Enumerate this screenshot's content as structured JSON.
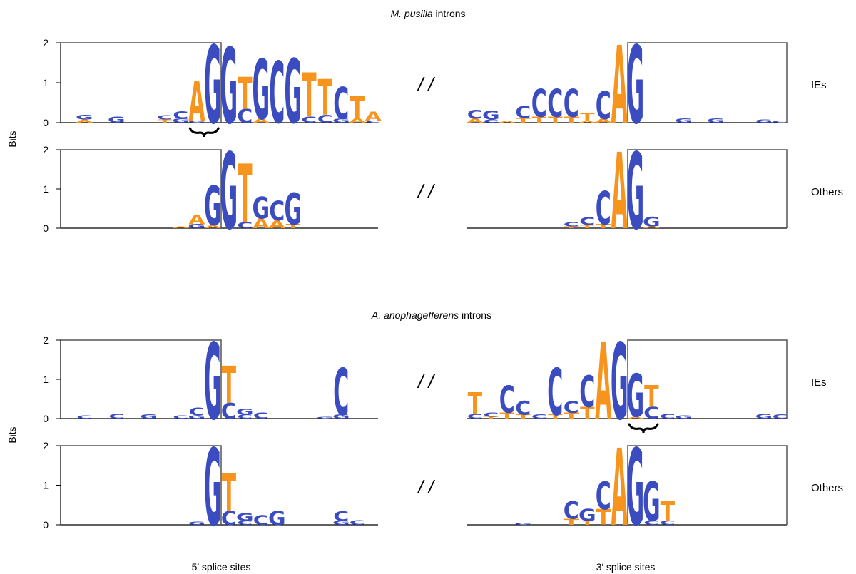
{
  "figure": {
    "colors": {
      "purine_blue": "#3b4cc0",
      "orange": "#f7941d",
      "axis": "#000000",
      "frame": "#555555"
    },
    "bottom_labels": {
      "left": "5′ splice sites",
      "right": "3′ splice sites"
    },
    "break_mark": "/ /"
  },
  "chart_data": [
    {
      "type": "sequence_logo",
      "title": "M. pusilla introns",
      "title_italic": "M. pusilla",
      "title_rest": " introns",
      "ylabel": "Bits",
      "ylim": [
        0,
        2
      ],
      "yticks": [
        "0",
        "1",
        "2"
      ],
      "rows": [
        {
          "label": "IEs",
          "left": {
            "boxed_positions": 10,
            "positions": [
              [],
              [
                {
                  "l": "G",
                  "h": 0.12
                },
                {
                  "l": "A",
                  "h": 0.08
                }
              ],
              [],
              [
                {
                  "l": "G",
                  "h": 0.15
                }
              ],
              [],
              [],
              [
                {
                  "l": "C",
                  "h": 0.1
                },
                {
                  "l": "T",
                  "h": 0.08
                }
              ],
              [
                {
                  "l": "C",
                  "h": 0.18
                },
                {
                  "l": "G",
                  "h": 0.1
                }
              ],
              [
                {
                  "l": "A",
                  "h": 1.0
                },
                {
                  "l": "G",
                  "h": 0.05
                }
              ],
              [
                {
                  "l": "G",
                  "h": 1.95
                }
              ],
              [
                {
                  "l": "G",
                  "h": 1.9
                }
              ],
              [
                {
                  "l": "T",
                  "h": 0.8
                },
                {
                  "l": "C",
                  "h": 0.35
                }
              ],
              [
                {
                  "l": "G",
                  "h": 1.5
                },
                {
                  "l": "A",
                  "h": 0.1
                }
              ],
              [
                {
                  "l": "C",
                  "h": 1.55
                }
              ],
              [
                {
                  "l": "G",
                  "h": 1.6
                }
              ],
              [
                {
                  "l": "T",
                  "h": 1.1
                },
                {
                  "l": "C",
                  "h": 0.15
                }
              ],
              [
                {
                  "l": "T",
                  "h": 0.9
                },
                {
                  "l": "C",
                  "h": 0.2
                }
              ],
              [
                {
                  "l": "C",
                  "h": 0.8
                },
                {
                  "l": "G",
                  "h": 0.1
                }
              ],
              [
                {
                  "l": "T",
                  "h": 0.55
                },
                {
                  "l": "A",
                  "h": 0.12
                }
              ],
              [
                {
                  "l": "A",
                  "h": 0.22
                },
                {
                  "l": "C",
                  "h": 0.05
                }
              ]
            ]
          },
          "right": {
            "boxed_start": 10,
            "positions": [
              [
                {
                  "l": "C",
                  "h": 0.22
                },
                {
                  "l": "A",
                  "h": 0.1
                }
              ],
              [
                {
                  "l": "G",
                  "h": 0.22
                },
                {
                  "l": "C",
                  "h": 0.08
                }
              ],
              [
                {
                  "l": "A",
                  "h": 0.05
                }
              ],
              [
                {
                  "l": "C",
                  "h": 0.3
                },
                {
                  "l": "T",
                  "h": 0.12
                }
              ],
              [
                {
                  "l": "C",
                  "h": 0.7
                },
                {
                  "l": "T",
                  "h": 0.15
                }
              ],
              [
                {
                  "l": "C",
                  "h": 0.7
                },
                {
                  "l": "T",
                  "h": 0.15
                }
              ],
              [
                {
                  "l": "C",
                  "h": 0.7
                },
                {
                  "l": "T",
                  "h": 0.15
                }
              ],
              [
                {
                  "l": "T",
                  "h": 0.2
                },
                {
                  "l": "A",
                  "h": 0.05
                }
              ],
              [
                {
                  "l": "C",
                  "h": 0.7
                },
                {
                  "l": "A",
                  "h": 0.1
                }
              ],
              [
                {
                  "l": "A",
                  "h": 1.95
                }
              ],
              [
                {
                  "l": "G",
                  "h": 1.95
                }
              ],
              [],
              [],
              [
                {
                  "l": "G",
                  "h": 0.1
                }
              ],
              [],
              [
                {
                  "l": "G",
                  "h": 0.1
                }
              ],
              [],
              [],
              [
                {
                  "l": "G",
                  "h": 0.08
                }
              ],
              [
                {
                  "l": "C",
                  "h": 0.05
                }
              ]
            ]
          },
          "brace": "left"
        },
        {
          "label": "Others",
          "left": {
            "boxed_positions": 10,
            "positions": [
              [],
              [],
              [],
              [],
              [],
              [],
              [],
              [
                {
                  "l": "A",
                  "h": 0.05
                }
              ],
              [
                {
                  "l": "A",
                  "h": 0.25
                },
                {
                  "l": "G",
                  "h": 0.1
                }
              ],
              [
                {
                  "l": "G",
                  "h": 1.0
                },
                {
                  "l": "A",
                  "h": 0.08
                }
              ],
              [
                {
                  "l": "G",
                  "h": 1.95
                }
              ],
              [
                {
                  "l": "T",
                  "h": 1.5
                },
                {
                  "l": "C",
                  "h": 0.15
                }
              ],
              [
                {
                  "l": "G",
                  "h": 0.55
                },
                {
                  "l": "A",
                  "h": 0.25
                }
              ],
              [
                {
                  "l": "C",
                  "h": 0.5
                },
                {
                  "l": "A",
                  "h": 0.2
                }
              ],
              [
                {
                  "l": "G",
                  "h": 0.8
                },
                {
                  "l": "T",
                  "h": 0.1
                }
              ]
            ]
          },
          "right": {
            "boxed_start": 10,
            "positions": [
              [],
              [],
              [],
              [],
              [],
              [],
              [
                {
                  "l": "C",
                  "h": 0.1
                },
                {
                  "l": "T",
                  "h": 0.05
                }
              ],
              [
                {
                  "l": "C",
                  "h": 0.2
                },
                {
                  "l": "T",
                  "h": 0.08
                }
              ],
              [
                {
                  "l": "C",
                  "h": 0.85
                },
                {
                  "l": "T",
                  "h": 0.1
                }
              ],
              [
                {
                  "l": "A",
                  "h": 1.95
                }
              ],
              [
                {
                  "l": "G",
                  "h": 1.95
                }
              ],
              [
                {
                  "l": "G",
                  "h": 0.25
                },
                {
                  "l": "A",
                  "h": 0.05
                }
              ]
            ]
          },
          "brace": ""
        }
      ]
    },
    {
      "type": "sequence_logo",
      "title": "A. anophagefferens introns",
      "title_italic": "A. anophagefferens",
      "title_rest": " introns",
      "ylabel": "Bits",
      "ylim": [
        0,
        2
      ],
      "yticks": [
        "0",
        "1",
        "2"
      ],
      "rows": [
        {
          "label": "IEs",
          "left": {
            "boxed_positions": 10,
            "positions": [
              [],
              [
                {
                  "l": "C",
                  "h": 0.08
                }
              ],
              [],
              [
                {
                  "l": "C",
                  "h": 0.12
                }
              ],
              [],
              [
                {
                  "l": "G",
                  "h": 0.1
                }
              ],
              [],
              [
                {
                  "l": "C",
                  "h": 0.08
                }
              ],
              [
                {
                  "l": "C",
                  "h": 0.2
                },
                {
                  "l": "G",
                  "h": 0.08
                }
              ],
              [
                {
                  "l": "G",
                  "h": 1.95
                }
              ],
              [
                {
                  "l": "T",
                  "h": 0.95
                },
                {
                  "l": "C",
                  "h": 0.4
                }
              ],
              [
                {
                  "l": "G",
                  "h": 0.15
                },
                {
                  "l": "C",
                  "h": 0.1
                }
              ],
              [
                {
                  "l": "C",
                  "h": 0.15
                }
              ],
              [],
              [],
              [],
              [
                {
                  "l": "G",
                  "h": 0.05
                }
              ],
              [
                {
                  "l": "C",
                  "h": 1.2
                },
                {
                  "l": "G",
                  "h": 0.1
                }
              ]
            ]
          },
          "right": {
            "boxed_start": 10,
            "positions": [
              [
                {
                  "l": "T",
                  "h": 0.55
                },
                {
                  "l": "C",
                  "h": 0.12
                }
              ],
              [
                {
                  "l": "C",
                  "h": 0.1
                },
                {
                  "l": "T",
                  "h": 0.05
                }
              ],
              [
                {
                  "l": "C",
                  "h": 0.7
                },
                {
                  "l": "T",
                  "h": 0.15
                }
              ],
              [
                {
                  "l": "C",
                  "h": 0.35
                },
                {
                  "l": "T",
                  "h": 0.1
                }
              ],
              [
                {
                  "l": "C",
                  "h": 0.1
                }
              ],
              [
                {
                  "l": "C",
                  "h": 1.2
                },
                {
                  "l": "T",
                  "h": 0.1
                }
              ],
              [
                {
                  "l": "C",
                  "h": 0.3
                },
                {
                  "l": "T",
                  "h": 0.15
                }
              ],
              [
                {
                  "l": "C",
                  "h": 0.8
                },
                {
                  "l": "T",
                  "h": 0.3
                }
              ],
              [
                {
                  "l": "A",
                  "h": 1.95
                }
              ],
              [
                {
                  "l": "G",
                  "h": 1.95
                }
              ],
              [
                {
                  "l": "G",
                  "h": 1.1
                },
                {
                  "l": "A",
                  "h": 0.05
                }
              ],
              [
                {
                  "l": "T",
                  "h": 0.55
                },
                {
                  "l": "C",
                  "h": 0.3
                }
              ],
              [
                {
                  "l": "C",
                  "h": 0.12
                }
              ],
              [
                {
                  "l": "G",
                  "h": 0.08
                }
              ],
              [],
              [],
              [],
              [],
              [
                {
                  "l": "G",
                  "h": 0.12
                }
              ],
              [
                {
                  "l": "C",
                  "h": 0.1
                }
              ]
            ]
          },
          "brace": "right"
        },
        {
          "label": "Others",
          "left": {
            "boxed_positions": 10,
            "positions": [
              [],
              [],
              [],
              [],
              [],
              [],
              [],
              [],
              [
                {
                  "l": "G",
                  "h": 0.08
                }
              ],
              [
                {
                  "l": "G",
                  "h": 1.95
                }
              ],
              [
                {
                  "l": "T",
                  "h": 0.95
                },
                {
                  "l": "C",
                  "h": 0.35
                }
              ],
              [
                {
                  "l": "G",
                  "h": 0.2
                },
                {
                  "l": "C",
                  "h": 0.1
                }
              ],
              [
                {
                  "l": "C",
                  "h": 0.25
                }
              ],
              [
                {
                  "l": "G",
                  "h": 0.35
                }
              ],
              [],
              [],
              [],
              [
                {
                  "l": "C",
                  "h": 0.25
                },
                {
                  "l": "G",
                  "h": 0.1
                }
              ],
              [
                {
                  "l": "C",
                  "h": 0.12
                }
              ]
            ]
          },
          "right": {
            "boxed_start": 10,
            "positions": [
              [],
              [],
              [],
              [
                {
                  "l": "G",
                  "h": 0.05
                }
              ],
              [],
              [],
              [
                {
                  "l": "C",
                  "h": 0.45
                },
                {
                  "l": "T",
                  "h": 0.15
                }
              ],
              [
                {
                  "l": "G",
                  "h": 0.3
                },
                {
                  "l": "T",
                  "h": 0.1
                }
              ],
              [
                {
                  "l": "C",
                  "h": 0.7
                },
                {
                  "l": "T",
                  "h": 0.4
                }
              ],
              [
                {
                  "l": "A",
                  "h": 1.95
                }
              ],
              [
                {
                  "l": "G",
                  "h": 1.95
                }
              ],
              [
                {
                  "l": "G",
                  "h": 1.0
                },
                {
                  "l": "C",
                  "h": 0.1
                }
              ],
              [
                {
                  "l": "T",
                  "h": 0.5
                },
                {
                  "l": "C",
                  "h": 0.1
                }
              ]
            ]
          },
          "brace": ""
        }
      ]
    }
  ]
}
